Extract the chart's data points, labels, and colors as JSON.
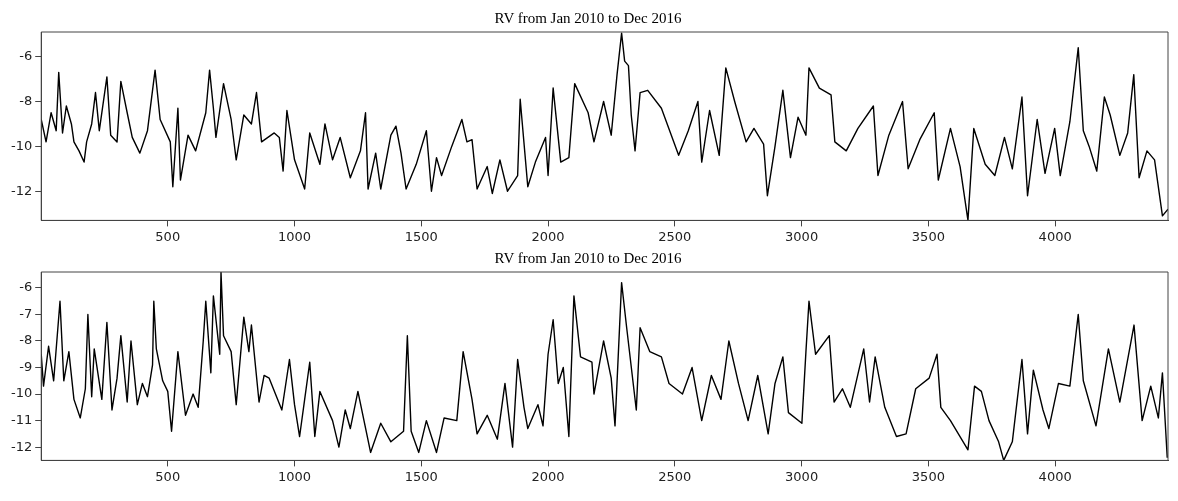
{
  "chart_data": [
    {
      "type": "line",
      "title": "RV from Jan 2010 to Dec 2016",
      "color": "#000000",
      "xlim": [
        1,
        4445
      ],
      "xticks": [
        500,
        1000,
        1500,
        2000,
        2500,
        3000,
        3500,
        4000
      ],
      "ylim": [
        -13.3,
        -4.9
      ],
      "yticks": [
        -12,
        -10,
        -8,
        -6
      ],
      "x": [
        1,
        20,
        40,
        60,
        70,
        85,
        100,
        120,
        130,
        150,
        170,
        180,
        200,
        215,
        230,
        260,
        275,
        300,
        315,
        340,
        360,
        390,
        420,
        450,
        470,
        510,
        520,
        540,
        550,
        580,
        610,
        650,
        665,
        680,
        690,
        720,
        750,
        770,
        800,
        830,
        850,
        870,
        920,
        940,
        955,
        970,
        1000,
        1040,
        1060,
        1100,
        1120,
        1150,
        1180,
        1220,
        1260,
        1280,
        1290,
        1320,
        1340,
        1380,
        1400,
        1420,
        1440,
        1480,
        1520,
        1540,
        1560,
        1580,
        1620,
        1660,
        1680,
        1700,
        1720,
        1760,
        1780,
        1810,
        1840,
        1880,
        1890,
        1920,
        1950,
        1990,
        2000,
        2020,
        2050,
        2082,
        2105,
        2158,
        2181,
        2219,
        2249,
        2272,
        2290,
        2302,
        2317,
        2328,
        2343,
        2363,
        2393,
        2447,
        2515,
        2553,
        2591,
        2606,
        2637,
        2675,
        2701,
        2736,
        2781,
        2812,
        2850,
        2865,
        2895,
        2926,
        2956,
        2986,
        3017,
        3029,
        3070,
        3116,
        3131,
        3176,
        3222,
        3283,
        3301,
        3344,
        3398,
        3420,
        3466,
        3523,
        3539,
        3587,
        3625,
        3656,
        3679,
        3724,
        3762,
        3800,
        3831,
        3869,
        3891,
        3929,
        3960,
        3998,
        4020,
        4058,
        4091,
        4111,
        4134,
        4164,
        4194,
        4217,
        4255,
        4286,
        4310,
        4331,
        4362,
        4392,
        4423,
        4445
      ],
      "values": [
        -8.8,
        -9.8,
        -8.5,
        -9.3,
        -6.7,
        -9.4,
        -8.2,
        -9.0,
        -9.8,
        -10.2,
        -10.7,
        -9.8,
        -9.0,
        -7.6,
        -9.3,
        -6.9,
        -9.5,
        -9.8,
        -7.1,
        -8.5,
        -9.6,
        -10.3,
        -9.3,
        -6.6,
        -8.8,
        -9.8,
        -11.8,
        -8.3,
        -11.5,
        -9.5,
        -10.2,
        -8.5,
        -6.6,
        -8.3,
        -9.6,
        -7.2,
        -8.8,
        -10.6,
        -8.6,
        -9.0,
        -7.6,
        -9.8,
        -9.4,
        -9.6,
        -11.1,
        -8.4,
        -10.6,
        -11.9,
        -9.4,
        -10.8,
        -9.0,
        -10.6,
        -9.6,
        -11.4,
        -10.2,
        -8.5,
        -11.9,
        -10.3,
        -11.9,
        -9.5,
        -9.1,
        -10.3,
        -11.9,
        -10.8,
        -9.3,
        -12.0,
        -10.5,
        -11.3,
        -10.0,
        -8.8,
        -9.8,
        -9.7,
        -11.9,
        -10.9,
        -12.1,
        -10.6,
        -12.0,
        -11.3,
        -7.9,
        -11.8,
        -10.7,
        -9.6,
        -11.3,
        -7.4,
        -10.7,
        -10.5,
        -7.2,
        -8.5,
        -9.8,
        -8.0,
        -9.5,
        -6.8,
        -4.95,
        -6.2,
        -6.4,
        -8.6,
        -10.2,
        -7.6,
        -7.5,
        -8.3,
        -10.4,
        -9.3,
        -8.0,
        -10.7,
        -8.4,
        -10.4,
        -6.5,
        -8.0,
        -9.8,
        -9.2,
        -9.9,
        -12.2,
        -10.0,
        -7.5,
        -10.5,
        -8.7,
        -9.5,
        -6.5,
        -7.4,
        -7.7,
        -9.8,
        -10.2,
        -9.2,
        -8.2,
        -11.3,
        -9.5,
        -8.0,
        -11.0,
        -9.7,
        -8.5,
        -11.5,
        -9.2,
        -10.9,
        -13.3,
        -9.2,
        -10.8,
        -11.3,
        -9.6,
        -11.0,
        -7.8,
        -12.2,
        -8.8,
        -11.2,
        -9.2,
        -11.3,
        -8.9,
        -5.6,
        -9.3,
        -10.0,
        -11.1,
        -7.8,
        -8.6,
        -10.4,
        -9.4,
        -6.8,
        -11.4,
        -10.2,
        -10.6,
        -13.1,
        -12.8
      ]
    },
    {
      "type": "line",
      "title": "RV from Jan 2010 to Dec 2016",
      "color": "#000000",
      "xlim": [
        1,
        4445
      ],
      "xticks": [
        500,
        1000,
        1500,
        2000,
        2500,
        3000,
        3500,
        4000
      ],
      "ylim": [
        -12.5,
        -5.4
      ],
      "yticks": [
        -12,
        -11,
        -10,
        -9,
        -8,
        -7,
        -6
      ],
      "x": [
        1,
        10,
        30,
        50,
        75,
        90,
        110,
        130,
        155,
        175,
        185,
        200,
        210,
        240,
        260,
        280,
        300,
        315,
        340,
        355,
        380,
        400,
        420,
        440,
        445,
        455,
        480,
        500,
        515,
        540,
        570,
        600,
        620,
        640,
        650,
        670,
        680,
        705,
        710,
        720,
        750,
        770,
        800,
        820,
        830,
        860,
        880,
        900,
        950,
        980,
        1000,
        1020,
        1040,
        1060,
        1080,
        1100,
        1150,
        1175,
        1200,
        1220,
        1250,
        1300,
        1340,
        1380,
        1430,
        1445,
        1460,
        1490,
        1520,
        1560,
        1590,
        1640,
        1665,
        1700,
        1720,
        1760,
        1800,
        1830,
        1860,
        1880,
        1905,
        1920,
        1960,
        1980,
        2000,
        2020,
        2040,
        2060,
        2082,
        2102,
        2128,
        2173,
        2181,
        2219,
        2249,
        2264,
        2290,
        2310,
        2348,
        2363,
        2401,
        2447,
        2477,
        2530,
        2568,
        2606,
        2644,
        2682,
        2713,
        2751,
        2789,
        2827,
        2868,
        2895,
        2926,
        2948,
        3001,
        3017,
        3029,
        3055,
        3109,
        3128,
        3161,
        3192,
        3245,
        3268,
        3290,
        3328,
        3374,
        3412,
        3450,
        3503,
        3534,
        3549,
        3587,
        3656,
        3682,
        3709,
        3739,
        3777,
        3797,
        3831,
        3869,
        3891,
        3914,
        3952,
        3975,
        4013,
        4058,
        4091,
        4111,
        4161,
        4210,
        4255,
        4311,
        4343,
        4377,
        4407,
        4423,
        4442
      ],
      "values": [
        -8.5,
        -9.7,
        -8.2,
        -9.5,
        -6.5,
        -9.5,
        -8.4,
        -10.2,
        -10.9,
        -9.8,
        -7.0,
        -10.1,
        -8.3,
        -10.2,
        -7.3,
        -10.6,
        -9.4,
        -7.8,
        -10.3,
        -8.0,
        -10.4,
        -9.6,
        -10.1,
        -8.9,
        -6.5,
        -8.3,
        -9.5,
        -9.9,
        -11.4,
        -8.4,
        -10.8,
        -10.0,
        -10.5,
        -8.0,
        -6.5,
        -9.2,
        -6.3,
        -8.5,
        -5.4,
        -7.8,
        -8.4,
        -10.4,
        -7.1,
        -8.4,
        -7.4,
        -10.3,
        -9.3,
        -9.4,
        -10.6,
        -8.7,
        -10.4,
        -11.6,
        -10.2,
        -8.8,
        -11.6,
        -9.9,
        -11.0,
        -12.0,
        -10.6,
        -11.3,
        -9.9,
        -12.2,
        -11.1,
        -11.8,
        -11.4,
        -7.8,
        -11.4,
        -12.2,
        -11.0,
        -12.2,
        -10.9,
        -11.0,
        -8.4,
        -10.2,
        -11.5,
        -10.8,
        -11.7,
        -9.6,
        -12.0,
        -8.7,
        -10.5,
        -11.3,
        -10.4,
        -11.2,
        -8.5,
        -7.2,
        -9.6,
        -9.0,
        -11.6,
        -6.3,
        -8.6,
        -8.8,
        -10.0,
        -8.0,
        -9.4,
        -11.2,
        -5.8,
        -7.5,
        -10.6,
        -7.5,
        -8.4,
        -8.6,
        -9.6,
        -10.0,
        -9.0,
        -11.0,
        -9.3,
        -10.2,
        -8.0,
        -9.6,
        -11.0,
        -9.3,
        -11.5,
        -9.6,
        -8.6,
        -10.7,
        -11.1,
        -8.4,
        -6.5,
        -8.5,
        -7.8,
        -10.3,
        -9.8,
        -10.5,
        -8.3,
        -10.3,
        -8.6,
        -10.5,
        -11.6,
        -11.5,
        -9.8,
        -9.4,
        -8.5,
        -10.5,
        -11.0,
        -12.1,
        -9.7,
        -9.9,
        -11.0,
        -11.8,
        -12.5,
        -11.8,
        -8.7,
        -11.5,
        -9.1,
        -10.6,
        -11.3,
        -9.6,
        -9.7,
        -7.0,
        -9.5,
        -11.2,
        -8.3,
        -10.3,
        -7.4,
        -11.0,
        -9.7,
        -10.9,
        -9.2,
        -12.4
      ]
    }
  ]
}
